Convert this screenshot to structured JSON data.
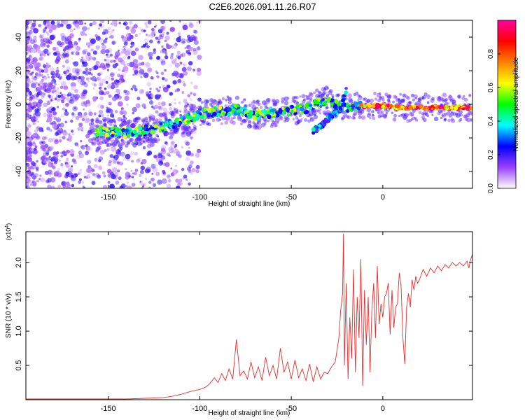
{
  "figure": {
    "title": "C2E6.2026.091.11.26.R07"
  },
  "chart_data": [
    {
      "type": "heatmap",
      "name": "spectrogram",
      "xlabel": "Height of straight line (km)",
      "ylabel": "Frequency (Hz)",
      "xlim": [
        -195,
        49
      ],
      "ylim": [
        -50,
        50
      ],
      "x_ticks": [
        -150,
        -100,
        -50,
        0
      ],
      "x_tick_labels": [
        "-150",
        "-100",
        "-50",
        "0"
      ],
      "y_ticks": [
        -40,
        -20,
        0,
        20,
        40
      ],
      "y_tick_labels": [
        "-40",
        "-20",
        "0",
        "20",
        "40"
      ],
      "ridge": {
        "description": "dominant spectral ridge (frequency vs height)",
        "x": [
          -157,
          -140,
          -125,
          -110,
          -100,
          -90,
          -80,
          -70,
          -60,
          -50,
          -40,
          -35,
          -30,
          -25,
          -20,
          -15,
          -10,
          0,
          10,
          20,
          30,
          40,
          49
        ],
        "y": [
          -16,
          -17,
          -15,
          -10,
          -6,
          -4,
          -3,
          -6,
          -5,
          -4,
          -2,
          1,
          2,
          -1,
          -2,
          -1,
          -1,
          -1,
          -2,
          -2,
          -2,
          -2,
          -2
        ]
      },
      "branch": {
        "description": "secondary descending branch",
        "x": [
          -38,
          -33,
          -28,
          -23,
          -20
        ],
        "y": [
          -16,
          -12,
          -7,
          -3,
          8
        ]
      },
      "colorbar": {
        "label": "Normalized spectral amplitude",
        "range": [
          0.0,
          1.0
        ],
        "ticks": [
          0.0,
          0.2,
          0.4,
          0.6,
          0.8
        ],
        "tick_labels": [
          "0.0",
          "0.2",
          "0.4",
          "0.6",
          "0.8"
        ],
        "colors": [
          "#ffffff",
          "#9b40ff",
          "#0000ff",
          "#00ffff",
          "#00ff00",
          "#ffff00",
          "#ff8000",
          "#ff0000",
          "#ff00a0"
        ]
      }
    },
    {
      "type": "line",
      "name": "snr",
      "xlabel": "Height of straight line (km)",
      "ylabel": "SNR (10 * v/v)",
      "y_scale_label": "(x10",
      "y_scale_exp": "4",
      "y_scale_close": ")",
      "xlim": [
        -195,
        49
      ],
      "ylim": [
        0,
        2.45
      ],
      "x_ticks": [
        -150,
        -100,
        -50,
        0
      ],
      "x_tick_labels": [
        "-150",
        "-100",
        "-50",
        "0"
      ],
      "y_ticks": [
        0.5,
        1.0,
        1.5,
        2.0
      ],
      "y_tick_labels": [
        "0.5",
        "1.0",
        "1.5",
        "2.0"
      ],
      "color": "#ee2a2a",
      "x": [
        -195,
        -180,
        -160,
        -140,
        -130,
        -120,
        -115,
        -110,
        -105,
        -100,
        -97,
        -95,
        -92,
        -90,
        -88,
        -86,
        -84,
        -82,
        -80,
        -78,
        -76,
        -74,
        -72,
        -70,
        -68,
        -66,
        -64,
        -62,
        -60,
        -58,
        -56,
        -54,
        -52,
        -50,
        -48,
        -46,
        -44,
        -42,
        -40,
        -38,
        -36,
        -34,
        -32,
        -30,
        -28,
        -26,
        -24,
        -23,
        -22,
        -21.5,
        -21,
        -20,
        -19,
        -18,
        -17,
        -16,
        -15,
        -14,
        -13,
        -12,
        -11,
        -10,
        -9,
        -8,
        -7,
        -6,
        -5,
        -4,
        -3,
        -2,
        -1,
        0,
        1,
        2,
        3,
        4,
        5,
        6,
        7,
        8,
        9,
        10,
        11,
        12,
        13,
        14,
        15,
        16,
        17,
        18,
        19,
        20,
        22,
        24,
        26,
        28,
        30,
        32,
        34,
        36,
        38,
        40,
        42,
        44,
        46,
        47,
        48,
        49
      ],
      "y": [
        0.01,
        0.01,
        0.01,
        0.01,
        0.02,
        0.03,
        0.05,
        0.08,
        0.12,
        0.15,
        0.18,
        0.22,
        0.32,
        0.25,
        0.38,
        0.28,
        0.45,
        0.3,
        0.88,
        0.35,
        0.42,
        0.3,
        0.55,
        0.32,
        0.48,
        0.28,
        0.62,
        0.35,
        0.5,
        0.3,
        0.75,
        0.4,
        0.55,
        0.3,
        0.58,
        0.32,
        0.45,
        0.28,
        0.52,
        0.26,
        0.48,
        0.3,
        0.4,
        0.38,
        0.48,
        0.55,
        0.9,
        1.3,
        1.55,
        2.42,
        0.5,
        1.7,
        0.3,
        1.2,
        0.6,
        1.9,
        0.4,
        1.5,
        0.9,
        2.05,
        0.2,
        1.6,
        0.8,
        1.5,
        0.4,
        1.3,
        1.7,
        0.9,
        1.95,
        1.1,
        1.4,
        1.2,
        1.5,
        1.55,
        1.7,
        0.95,
        1.6,
        1.05,
        1.35,
        1.4,
        1.85,
        1.65,
        0.9,
        0.52,
        1.35,
        1.55,
        1.35,
        1.75,
        1.6,
        1.8,
        1.7,
        1.75,
        1.9,
        1.8,
        1.92,
        1.85,
        1.95,
        1.88,
        1.97,
        1.92,
        2.0,
        1.95,
        2.0,
        1.95,
        2.02,
        1.92,
        2.05,
        2.12
      ]
    }
  ]
}
